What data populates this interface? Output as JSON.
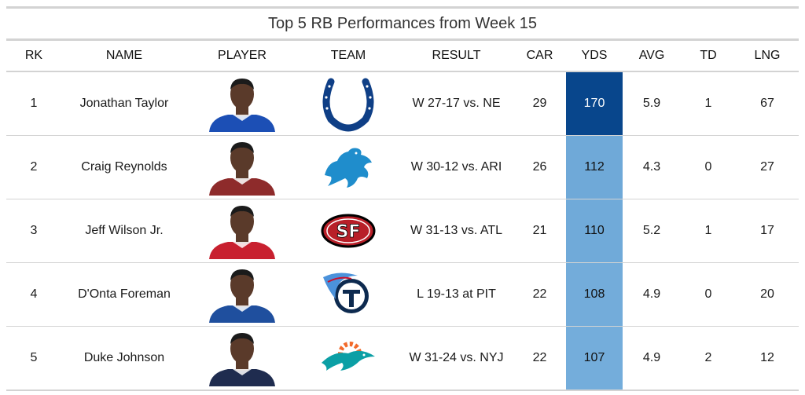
{
  "chart_data": {
    "type": "table",
    "title": "Top 5 RB Performances from Week 15",
    "columns": [
      "RK",
      "NAME",
      "PLAYER",
      "TEAM",
      "RESULT",
      "CAR",
      "YDS",
      "AVG",
      "TD",
      "LNG"
    ],
    "rows": [
      {
        "rk": "1",
        "name": "Jonathan Taylor",
        "player_icon": "player-headshot-icon",
        "team_icon": "colts-horseshoe-logo-icon",
        "result": "W 27-17 vs. NE",
        "car": "29",
        "yds": "170",
        "avg": "5.9",
        "td": "1",
        "lng": "67",
        "jersey": "#1c4fb5",
        "yds_color": "#08468c",
        "yds_dark": true
      },
      {
        "rk": "2",
        "name": "Craig Reynolds",
        "player_icon": "player-headshot-icon",
        "team_icon": "lions-logo-icon",
        "result": "W 30-12 vs. ARI",
        "car": "26",
        "yds": "112",
        "avg": "4.3",
        "td": "0",
        "lng": "27",
        "jersey": "#8e2b2b",
        "yds_color": "#6fa9d8",
        "yds_dark": false
      },
      {
        "rk": "3",
        "name": "Jeff Wilson Jr.",
        "player_icon": "player-headshot-icon",
        "team_icon": "49ers-sf-logo-icon",
        "result": "W 31-13 vs. ATL",
        "car": "21",
        "yds": "110",
        "avg": "5.2",
        "td": "1",
        "lng": "17",
        "jersey": "#c8202f",
        "yds_color": "#70aad9",
        "yds_dark": false
      },
      {
        "rk": "4",
        "name": "D'Onta Foreman",
        "player_icon": "player-headshot-icon",
        "team_icon": "titans-logo-icon",
        "result": "L 19-13 at PIT",
        "car": "22",
        "yds": "108",
        "avg": "4.9",
        "td": "0",
        "lng": "20",
        "jersey": "#1f4f9e",
        "yds_color": "#73acda",
        "yds_dark": false
      },
      {
        "rk": "5",
        "name": "Duke Johnson",
        "player_icon": "player-headshot-icon",
        "team_icon": "dolphins-logo-icon",
        "result": "W 31-24 vs. NYJ",
        "car": "22",
        "yds": "107",
        "avg": "4.9",
        "td": "2",
        "lng": "12",
        "jersey": "#1f2c4f",
        "yds_color": "#74addb",
        "yds_dark": false
      }
    ]
  },
  "colors": {
    "skin": "#5a3a2a",
    "colts_blue": "#0f3f86",
    "lions_blue": "#1f8dcc",
    "niners_red": "#b81f28",
    "titans_navy": "#0d2a4f",
    "titans_blue": "#4b92db",
    "dolphins_aqua": "#0b9fa5",
    "dolphins_orange": "#f26a2b",
    "rule_gray": "#d3d3d3"
  }
}
